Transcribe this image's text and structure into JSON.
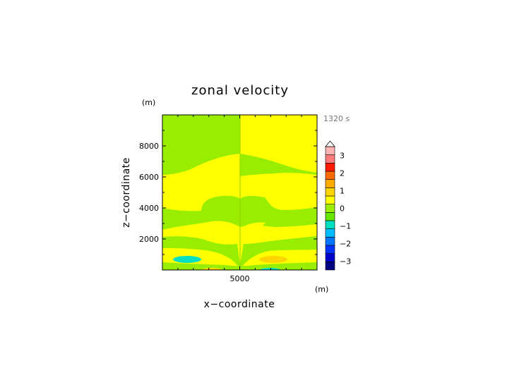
{
  "chart_data": {
    "type": "heatmap",
    "title": "zonal velocity",
    "xlabel": "x−coordinate",
    "ylabel": "z−coordinate",
    "x_unit": "(m)",
    "y_unit": "(m)",
    "time_label": "1320 s",
    "xlim": [
      0,
      10000
    ],
    "ylim": [
      0,
      10000
    ],
    "x_ticks": [
      {
        "value": 5000,
        "label": "5000"
      }
    ],
    "y_ticks": [
      {
        "value": 2000,
        "label": "2000"
      },
      {
        "value": 4000,
        "label": "4000"
      },
      {
        "value": 6000,
        "label": "6000"
      },
      {
        "value": 8000,
        "label": "8000"
      }
    ],
    "colorbar": {
      "range": [
        -3.5,
        3.5
      ],
      "step": 0.5,
      "extend_max": true,
      "colors": [
        "#000080",
        "#0000cc",
        "#0033ff",
        "#0077ff",
        "#00bbff",
        "#00e0c0",
        "#66e600",
        "#99ee00",
        "#ffff00",
        "#ffd500",
        "#ffaa00",
        "#ff6a00",
        "#ff1a00",
        "#ff7a7a",
        "#ffb3b3"
      ],
      "ticks": [
        {
          "value": -3,
          "label": "−3"
        },
        {
          "value": -2,
          "label": "−2"
        },
        {
          "value": -1,
          "label": "−1"
        },
        {
          "value": 0,
          "label": "0"
        },
        {
          "value": 1,
          "label": "1"
        },
        {
          "value": 2,
          "label": "2"
        },
        {
          "value": 3,
          "label": "3"
        }
      ]
    },
    "field_colors": {
      "green": "#99ee00",
      "yellow": "#ffff00",
      "cyan": "#00e0c0",
      "orange": "#ffd500"
    }
  }
}
